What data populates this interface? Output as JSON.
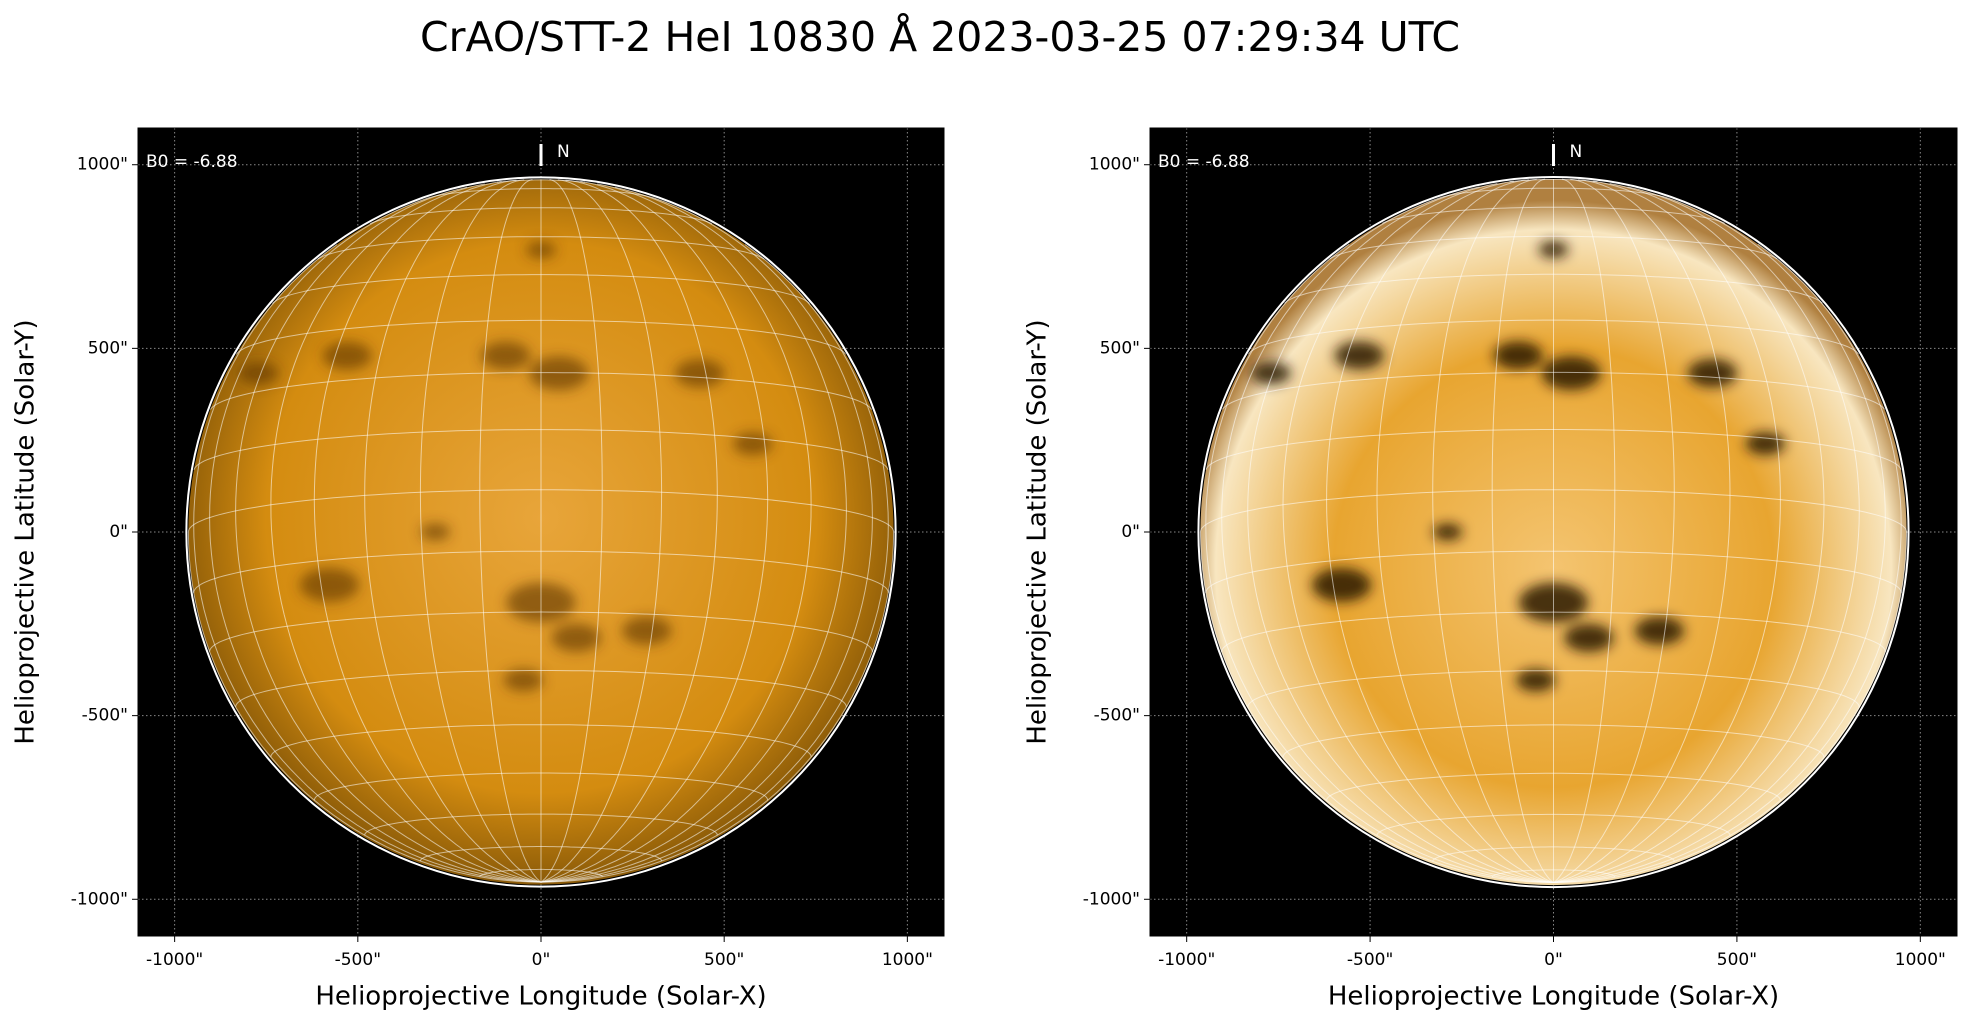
{
  "figure_title": "CrAO/STT-2 HeI 10830 Å 2023-03-25 07:29:34 UTC",
  "chart_data": [
    {
      "type": "image",
      "xlabel": "Helioprojective Longitude (Solar-X)",
      "ylabel": "Helioprojective Latitude (Solar-Y)",
      "xlim": [
        -1100,
        1100
      ],
      "ylim": [
        -1100,
        1100
      ],
      "xticks": [
        {
          "value": -1000,
          "label": "-1000\""
        },
        {
          "value": -500,
          "label": "-500\""
        },
        {
          "value": 0,
          "label": "0\""
        },
        {
          "value": 500,
          "label": "500\""
        },
        {
          "value": 1000,
          "label": "1000\""
        }
      ],
      "yticks": [
        {
          "value": -1000,
          "label": "-1000\""
        },
        {
          "value": -500,
          "label": "-500\""
        },
        {
          "value": 0,
          "label": "0\""
        },
        {
          "value": 500,
          "label": "500\""
        },
        {
          "value": 1000,
          "label": "1000\""
        }
      ],
      "annotations": [
        "B0 = -6.88",
        "N"
      ],
      "b0": -6.88,
      "grid": true,
      "color": "#d98a00"
    },
    {
      "type": "image",
      "xlabel": "Helioprojective Longitude (Solar-X)",
      "ylabel": "Helioprojective Latitude (Solar-Y)",
      "xlim": [
        -1100,
        1100
      ],
      "ylim": [
        -1100,
        1100
      ],
      "xticks": [
        {
          "value": -1000,
          "label": "-1000\""
        },
        {
          "value": -500,
          "label": "-500\""
        },
        {
          "value": 0,
          "label": "0\""
        },
        {
          "value": 500,
          "label": "500\""
        },
        {
          "value": 1000,
          "label": "1000\""
        }
      ],
      "yticks": [
        {
          "value": -1000,
          "label": "-1000\""
        },
        {
          "value": -500,
          "label": "-500\""
        },
        {
          "value": 0,
          "label": "0\""
        },
        {
          "value": 500,
          "label": "500\""
        },
        {
          "value": 1000,
          "label": "1000\""
        }
      ],
      "annotations": [
        "B0 = -6.88",
        "N"
      ],
      "b0": -6.88,
      "grid": true,
      "color": "#e09a10"
    }
  ]
}
